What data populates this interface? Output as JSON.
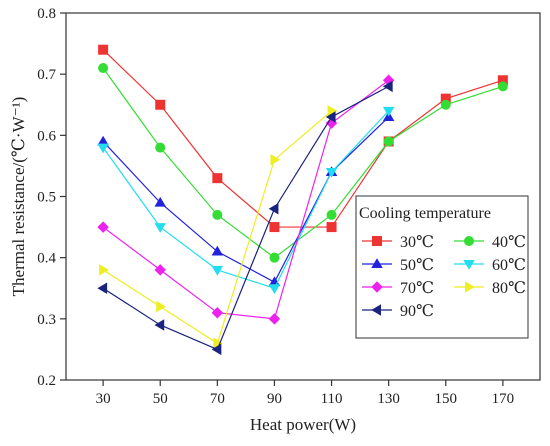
{
  "chart_data": {
    "type": "line",
    "title": "",
    "xlabel": "Heat power(W)",
    "ylabel": "Thermal resistance/(℃·W⁻¹)",
    "x": [
      30,
      50,
      70,
      90,
      110,
      130,
      150,
      170
    ],
    "x_tick_labels": [
      "30",
      "50",
      "70",
      "90",
      "110",
      "130",
      "150",
      "170"
    ],
    "xlim": [
      17,
      183
    ],
    "ylim": [
      0.2,
      0.8
    ],
    "y_ticks": [
      0.2,
      0.3,
      0.4,
      0.5,
      0.6,
      0.7,
      0.8
    ],
    "y_tick_labels": [
      "0.2",
      "0.3",
      "0.4",
      "0.5",
      "0.6",
      "0.7",
      "0.8"
    ],
    "grid": false,
    "legend": {
      "title": "Cooling temperature",
      "placement": "right-center",
      "columns": 2
    },
    "series": [
      {
        "name": "30℃",
        "color": "#ee3333",
        "marker": "square",
        "x": [
          30,
          50,
          70,
          90,
          110,
          130,
          150,
          170
        ],
        "values": [
          0.74,
          0.65,
          0.53,
          0.45,
          0.45,
          0.59,
          0.66,
          0.69
        ]
      },
      {
        "name": "40℃",
        "color": "#33dd33",
        "marker": "circle",
        "x": [
          30,
          50,
          70,
          90,
          110,
          130,
          150,
          170
        ],
        "values": [
          0.71,
          0.58,
          0.47,
          0.4,
          0.47,
          0.59,
          0.65,
          0.68
        ]
      },
      {
        "name": "50℃",
        "color": "#2222dd",
        "marker": "triangle-up",
        "x": [
          30,
          50,
          70,
          90,
          110,
          130
        ],
        "values": [
          0.59,
          0.49,
          0.41,
          0.36,
          0.54,
          0.63
        ]
      },
      {
        "name": "60℃",
        "color": "#22ddee",
        "marker": "triangle-down",
        "x": [
          30,
          50,
          70,
          90,
          110,
          130
        ],
        "values": [
          0.58,
          0.45,
          0.38,
          0.35,
          0.54,
          0.64
        ]
      },
      {
        "name": "70℃",
        "color": "#ee22ee",
        "marker": "diamond",
        "x": [
          30,
          50,
          70,
          90,
          110,
          130
        ],
        "values": [
          0.45,
          0.38,
          0.31,
          0.3,
          0.62,
          0.69
        ]
      },
      {
        "name": "80℃",
        "color": "#eeee22",
        "marker": "triangle-right",
        "x": [
          30,
          50,
          70,
          90,
          110
        ],
        "values": [
          0.38,
          0.32,
          0.26,
          0.56,
          0.64
        ]
      },
      {
        "name": "90℃",
        "color": "#1a237e",
        "marker": "triangle-left",
        "x": [
          30,
          50,
          70,
          90,
          110,
          130
        ],
        "values": [
          0.35,
          0.29,
          0.25,
          0.48,
          0.63,
          0.68
        ]
      }
    ]
  }
}
